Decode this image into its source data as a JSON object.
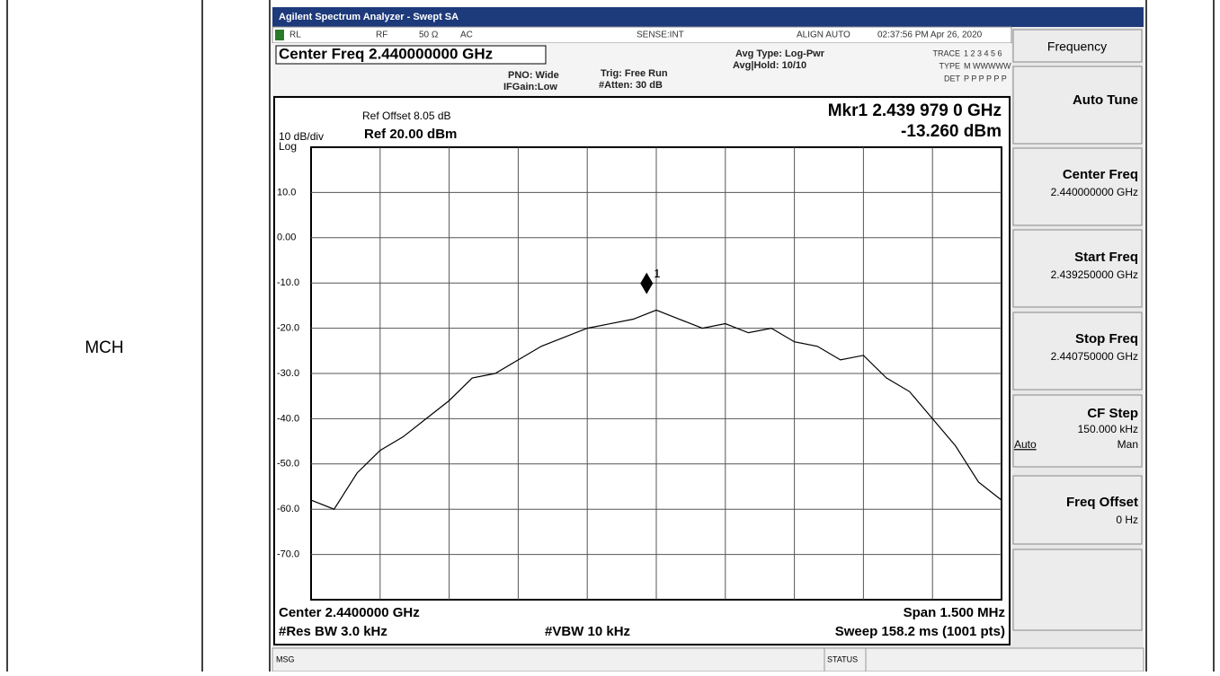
{
  "table": {
    "row_label": "MCH"
  },
  "analyzer": {
    "title_bar": "Agilent Spectrum Analyzer - Swept SA",
    "status": {
      "rl": "RL",
      "rf": "RF",
      "imp": "50 Ω",
      "ac": "AC",
      "sense": "SENSE:INT",
      "align": "ALIGN AUTO",
      "time": "02:37:56 PM Apr 26, 2020"
    },
    "center_freq_header": "Center Freq 2.440000000 GHz",
    "pno": "PNO: Wide",
    "ifgain": "IFGain:Low",
    "trig": "Trig: Free Run",
    "atten": "#Atten: 30 dB",
    "avg_type": "Avg Type: Log-Pwr",
    "avg_hold": "Avg|Hold: 10/10",
    "trace_label": "TRACE",
    "trace_vals": "1 2 3 4 5 6",
    "type_label": "TYPE",
    "type_vals": "M WWWWW",
    "det_label": "DET",
    "det_vals": "P P P P P P",
    "ref_offset": "Ref Offset 8.05 dB",
    "scale": "10 dB/div",
    "log": "Log",
    "ref_level": "Ref 20.00 dBm",
    "marker_freq": "Mkr1 2.439 979 0 GHz",
    "marker_level": "-13.260 dBm",
    "footer": {
      "center": "Center 2.4400000 GHz",
      "span": "Span 1.500 MHz",
      "rbw": "#Res BW 3.0 kHz",
      "vbw": "#VBW 10 kHz",
      "sweep": "Sweep  158.2 ms (1001 pts)"
    },
    "msg": "MSG",
    "status_label": "STATUS",
    "softkeys": {
      "header": "Frequency",
      "auto_tune": "Auto Tune",
      "center_title": "Center Freq",
      "center_value": "2.440000000 GHz",
      "start_title": "Start Freq",
      "start_value": "2.439250000 GHz",
      "stop_title": "Stop Freq",
      "stop_value": "2.440750000 GHz",
      "cf_title": "CF Step",
      "cf_value": "150.000 kHz",
      "cf_auto": "Auto",
      "cf_man": "Man",
      "offset_title": "Freq Offset",
      "offset_value": "0 Hz"
    }
  },
  "chart_data": {
    "type": "line",
    "x": [
      2.43925,
      2.4393,
      2.43935,
      2.4394,
      2.43945,
      2.4395,
      2.43955,
      2.4396,
      2.43965,
      2.4397,
      2.43975,
      2.4398,
      2.43985,
      2.4399,
      2.43995,
      2.44,
      2.44005,
      2.4401,
      2.44015,
      2.4402,
      2.44025,
      2.4403,
      2.44035,
      2.4404,
      2.44045,
      2.4405,
      2.44055,
      2.4406,
      2.44065,
      2.4407,
      2.44075
    ],
    "series": [
      {
        "color": "#000000",
        "values": [
          -58,
          -60,
          -52,
          -47,
          -44,
          -40,
          -36,
          -31,
          -30,
          -27,
          -24,
          -22,
          -20,
          -19,
          -18,
          -16,
          -18,
          -20,
          -19,
          -21,
          -20,
          -23,
          -24,
          -27,
          -26,
          -31,
          -34,
          -40,
          -46,
          -54,
          -58
        ]
      }
    ],
    "xlim": [
      2.43925,
      2.44075
    ],
    "ylim": [
      -80,
      20
    ],
    "yticks": [
      {
        "value": 10,
        "label": "10.0"
      },
      {
        "value": 0,
        "label": "0.00"
      },
      {
        "value": -10,
        "label": "-10.0"
      },
      {
        "value": -20,
        "label": "-20.0"
      },
      {
        "value": -30,
        "label": "-30.0"
      },
      {
        "value": -40,
        "label": "-40.0"
      },
      {
        "value": -50,
        "label": "-50.0"
      },
      {
        "value": -60,
        "label": "-60.0"
      },
      {
        "value": -70,
        "label": "-70.0"
      }
    ],
    "grid": true,
    "marker": {
      "x": 2.439979,
      "y": -13.26,
      "label": "1"
    }
  }
}
